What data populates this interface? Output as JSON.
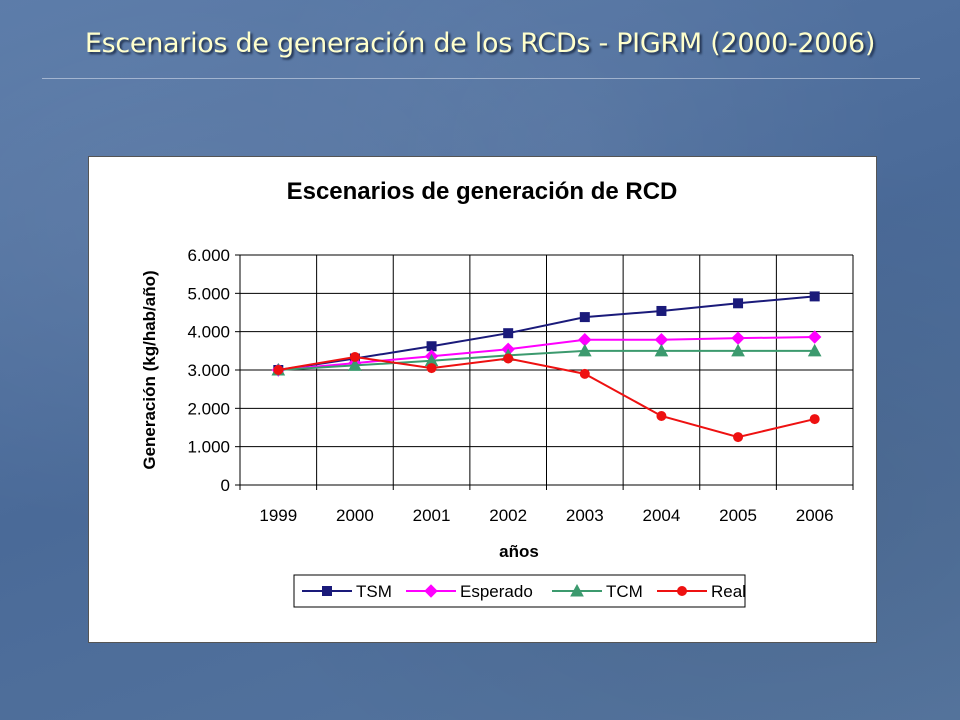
{
  "slide": {
    "title": "Escenarios de generación de los RCDs - PIGRM (2000-2006)"
  },
  "chart_data": {
    "type": "line",
    "title": "Escenarios de generación de RCD",
    "xlabel": "años",
    "ylabel": "Generación (kg/hab/año)",
    "categories": [
      "1999",
      "2000",
      "2001",
      "2002",
      "2003",
      "2004",
      "2005",
      "2006"
    ],
    "ylim": [
      0,
      6000
    ],
    "yticks": [
      0,
      1000,
      2000,
      3000,
      4000,
      5000,
      6000
    ],
    "ytick_labels": [
      "0",
      "1.000",
      "2.000",
      "3.000",
      "4.000",
      "5.000",
      "6.000"
    ],
    "grid": true,
    "legend_position": "bottom",
    "series": [
      {
        "name": "TSM",
        "color": "#1a1a7a",
        "marker": "square",
        "values": [
          3000,
          3300,
          3620,
          3960,
          4380,
          4540,
          4740,
          4920
        ]
      },
      {
        "name": "Esperado",
        "color": "#ff00ff",
        "marker": "diamond",
        "values": [
          3000,
          3180,
          3360,
          3540,
          3790,
          3790,
          3830,
          3860
        ]
      },
      {
        "name": "TCM",
        "color": "#3c9a6e",
        "marker": "triangle",
        "values": [
          3000,
          3120,
          3240,
          3380,
          3500,
          3500,
          3500,
          3500
        ]
      },
      {
        "name": "Real",
        "color": "#ee1111",
        "marker": "circle",
        "values": [
          3000,
          3340,
          3050,
          3300,
          2900,
          1800,
          1250,
          1720
        ]
      }
    ]
  }
}
